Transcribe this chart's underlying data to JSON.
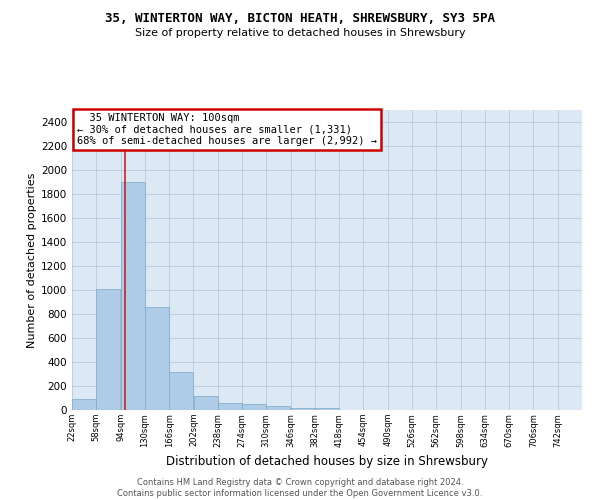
{
  "title_line1": "35, WINTERTON WAY, BICTON HEATH, SHREWSBURY, SY3 5PA",
  "title_line2": "Size of property relative to detached houses in Shrewsbury",
  "xlabel": "Distribution of detached houses by size in Shrewsbury",
  "ylabel": "Number of detached properties",
  "footer_line1": "Contains HM Land Registry data © Crown copyright and database right 2024.",
  "footer_line2": "Contains public sector information licensed under the Open Government Licence v3.0.",
  "annotation_line1": "  35 WINTERTON WAY: 100sqm",
  "annotation_line2": "← 30% of detached houses are smaller (1,331)",
  "annotation_line3": "68% of semi-detached houses are larger (2,992) →",
  "property_sqm": 100,
  "bins": [
    22,
    58,
    94,
    130,
    166,
    202,
    238,
    274,
    310,
    346,
    382,
    418,
    454,
    490,
    526,
    562,
    598,
    634,
    670,
    706,
    742
  ],
  "bar_values": [
    90,
    1010,
    1900,
    860,
    315,
    115,
    60,
    50,
    35,
    20,
    20,
    0,
    0,
    0,
    0,
    0,
    0,
    0,
    0,
    0
  ],
  "bar_color": "#aecce8",
  "bar_edge_color": "#7aaac8",
  "vline_color": "#cc2222",
  "annotation_box_color": "#cc0000",
  "background_color": "#dde8f5",
  "grid_color": "#b8c8dc",
  "ylim": [
    0,
    2500
  ],
  "yticks": [
    0,
    200,
    400,
    600,
    800,
    1000,
    1200,
    1400,
    1600,
    1800,
    2000,
    2200,
    2400
  ],
  "title_fontsize": 9,
  "subtitle_fontsize": 8,
  "ylabel_fontsize": 8,
  "xlabel_fontsize": 8.5,
  "annot_fontsize": 7.5,
  "footer_fontsize": 6
}
